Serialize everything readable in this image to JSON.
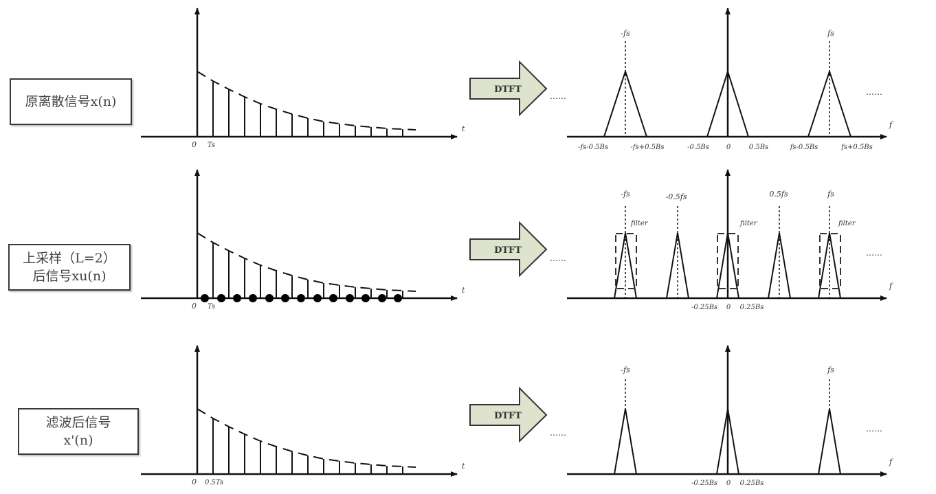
{
  "rows": [
    {
      "label_lines": [
        "原离散信号x(n)"
      ],
      "time": {
        "origin": "0",
        "tick": "Ts",
        "axis": "t"
      },
      "dtft_label": "DTFT",
      "freq": {
        "peaks": [
          "-fs",
          "fs"
        ],
        "ticks": [
          "-fs-0.5Bs",
          "-fs+0.5Bs",
          "-0.5Bs",
          "0",
          "0.5Bs",
          "fs-0.5Bs",
          "fs+0.5Bs"
        ],
        "axis": "f",
        "dots": "……"
      }
    },
    {
      "label_lines": [
        "上采样（L=2）",
        "后信号xu(n)"
      ],
      "time": {
        "origin": "0",
        "tick": "Ts",
        "axis": "t"
      },
      "dtft_label": "DTFT",
      "freq": {
        "peaks": [
          "-fs",
          "-0.5fs",
          "0.5fs",
          "fs"
        ],
        "filter_label": "filter",
        "ticks": [
          "-0.25Bs",
          "0",
          "0.25Bs"
        ],
        "axis": "f",
        "dots": "……"
      }
    },
    {
      "label_lines": [
        "滤波后信号",
        "x'(n)"
      ],
      "time": {
        "origin": "0",
        "tick": "0.5Ts",
        "axis": "t"
      },
      "dtft_label": "DTFT",
      "freq": {
        "peaks": [
          "-fs",
          "fs"
        ],
        "ticks": [
          "-0.25Bs",
          "0",
          "0.25Bs"
        ],
        "axis": "f",
        "dots": "……"
      }
    }
  ],
  "colors": {
    "line": "#111111",
    "arrow_fill": "#dde3cc",
    "arrow_stroke": "#333333"
  }
}
